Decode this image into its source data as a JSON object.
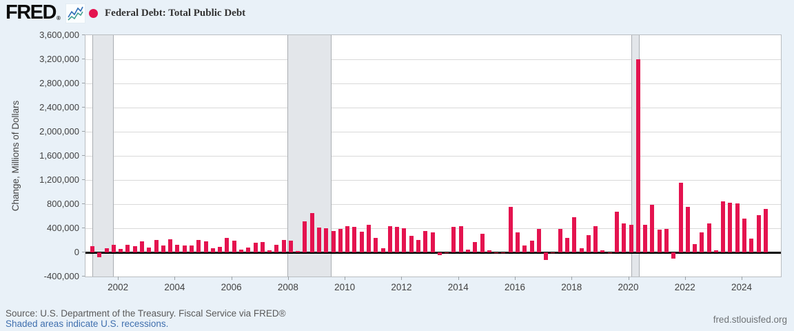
{
  "header": {
    "logo_text": "FRED",
    "registered_mark": "®",
    "series_title": "Federal Debt: Total Public Debt"
  },
  "footer": {
    "source_line": "Source: U.S. Department of the Treasury. Fiscal Service via FRED®",
    "recession_note": "Shaded areas indicate U.S. recessions.",
    "site_link": "fred.stlouisfed.org"
  },
  "chart_data": {
    "type": "bar",
    "title": "Federal Debt: Total Public Debt",
    "ylabel": "Change, Millions of Dollars",
    "xlabel": "",
    "frequency": "quarterly",
    "start_year": 2001,
    "ylim": [
      -400000,
      3600000
    ],
    "xlim": [
      2000.83,
      2025.36
    ],
    "grid": true,
    "y_tick_labels": [
      "3,600,000",
      "3,200,000",
      "2,800,000",
      "2,400,000",
      "2,000,000",
      "1,600,000",
      "1,200,000",
      "800,000",
      "400,000",
      "0",
      "-400,000"
    ],
    "y_tick_values": [
      3600000,
      3200000,
      2800000,
      2400000,
      2000000,
      1600000,
      1200000,
      800000,
      400000,
      0,
      -400000
    ],
    "x_tick_years": [
      2002,
      2004,
      2006,
      2008,
      2010,
      2012,
      2014,
      2016,
      2018,
      2020,
      2022,
      2024
    ],
    "values": [
      100000,
      -80000,
      70000,
      125000,
      55000,
      125000,
      105000,
      180000,
      75000,
      205000,
      115000,
      220000,
      130000,
      115000,
      110000,
      210000,
      180000,
      65000,
      95000,
      235000,
      200000,
      50000,
      85000,
      160000,
      175000,
      35000,
      130000,
      210000,
      190000,
      25000,
      520000,
      655000,
      410000,
      405000,
      355000,
      385000,
      440000,
      420000,
      340000,
      455000,
      245000,
      65000,
      430000,
      420000,
      400000,
      275000,
      210000,
      360000,
      330000,
      -40000,
      5000,
      420000,
      440000,
      50000,
      170000,
      310000,
      30000,
      5000,
      5000,
      755000,
      335000,
      115000,
      200000,
      390000,
      -125000,
      5000,
      385000,
      235000,
      585000,
      70000,
      290000,
      440000,
      30000,
      5000,
      680000,
      475000,
      460000,
      3200000,
      455000,
      790000,
      380000,
      390000,
      -100000,
      1150000,
      755000,
      140000,
      330000,
      475000,
      40000,
      845000,
      820000,
      817000,
      560000,
      225000,
      615000,
      725000
    ],
    "recessions": [
      {
        "start": 2001.08,
        "end": 2001.79
      },
      {
        "start": 2007.95,
        "end": 2009.45
      },
      {
        "start": 2020.08,
        "end": 2020.33
      }
    ],
    "colors": {
      "bar": "#e4134f",
      "recession_fill": "#e3e6ea",
      "recession_edge": "#a9adb2",
      "grid": "#d9d9d9",
      "zero_line": "#000000",
      "background": "#e9f1f8",
      "plot_background": "#ffffff"
    },
    "legend_position": "top"
  }
}
